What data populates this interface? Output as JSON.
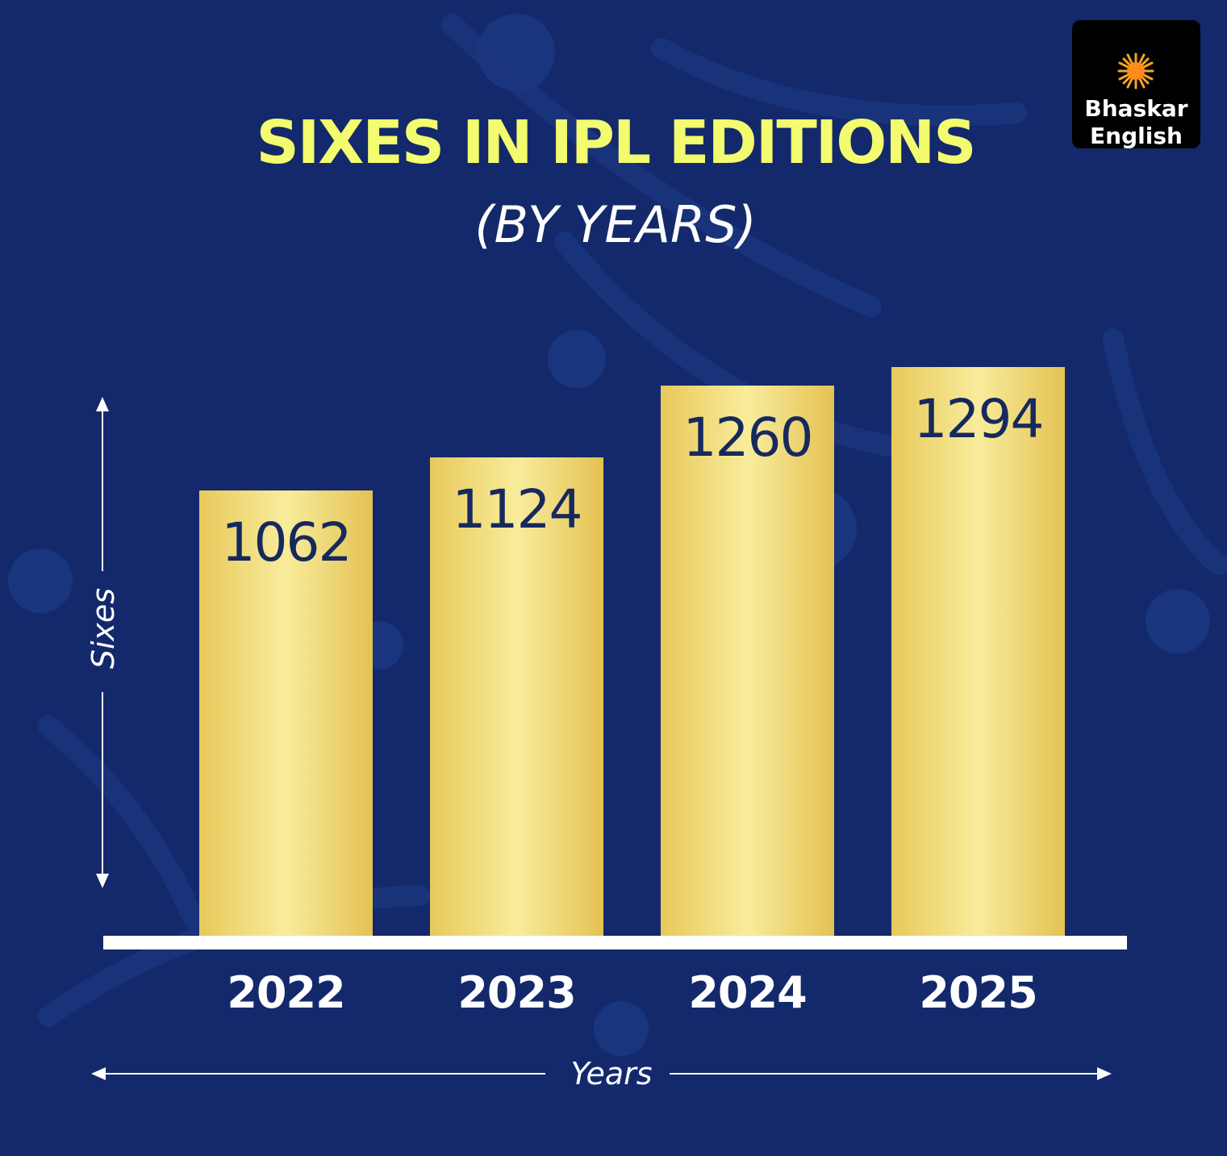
{
  "logo": {
    "line1": "Bhaskar",
    "line2": "English",
    "icon": "sun-icon"
  },
  "colors": {
    "background": "#13296b",
    "title": "#f3fb6e",
    "subtitle": "#ffffff",
    "bar_dark": "#e4c253",
    "bar_light": "#f8ec9c",
    "bar_label": "#16295e"
  },
  "chart_data": {
    "type": "bar",
    "title": "SIXES IN IPL EDITIONS",
    "subtitle": "(BY YEARS)",
    "categories": [
      "2022",
      "2023",
      "2024",
      "2025"
    ],
    "values": [
      1062,
      1124,
      1260,
      1294
    ],
    "xlabel": "Years",
    "ylabel": "Sixes",
    "data_labels": [
      "1062",
      "1124",
      "1260",
      "1294"
    ],
    "grid": false,
    "legend": "none"
  }
}
